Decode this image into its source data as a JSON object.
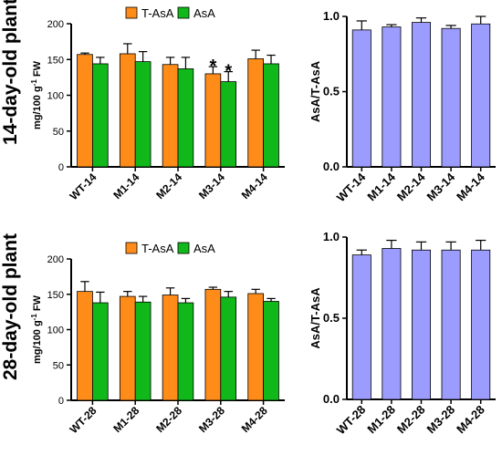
{
  "row_titles": [
    "14-day-old plant",
    "28-day-old plant"
  ],
  "colors": {
    "tasa": "#FF8C19",
    "asa": "#10B81A",
    "ratio": "#9C9CFF",
    "axis": "#000000"
  },
  "chart_data": [
    {
      "type": "bar",
      "ylabel": "mg/100 g-1 FW",
      "ylim": [
        0,
        200
      ],
      "yticks": [
        0,
        50,
        100,
        150,
        200
      ],
      "categories": [
        "WT-14",
        "M1-14",
        "M2-14",
        "M3-14",
        "M4-14"
      ],
      "legend_position": "top",
      "series": [
        {
          "name": "T-AsA",
          "color": "#FF8C19",
          "values": [
            157,
            158,
            143,
            130,
            151
          ],
          "errors": [
            2,
            14,
            10,
            10,
            12
          ]
        },
        {
          "name": "AsA",
          "color": "#10B81A",
          "values": [
            144,
            147,
            137,
            119,
            144
          ],
          "errors": [
            9,
            14,
            16,
            14,
            12
          ]
        }
      ],
      "annotations": [
        {
          "category": "M3-14",
          "series": "T-AsA",
          "text": "*"
        },
        {
          "category": "M3-14",
          "series": "AsA",
          "text": "*"
        }
      ]
    },
    {
      "type": "bar",
      "ylabel": "AsA/T-AsA",
      "ylim": [
        0,
        1.0
      ],
      "yticks": [
        "0.0",
        "0.5",
        "1.0"
      ],
      "categories": [
        "WT-14",
        "M1-14",
        "M2-14",
        "M3-14",
        "M4-14"
      ],
      "series": [
        {
          "color": "#9C9CFF",
          "values": [
            0.91,
            0.93,
            0.96,
            0.92,
            0.95
          ],
          "errors": [
            0.06,
            0.015,
            0.03,
            0.02,
            0.05
          ]
        }
      ]
    },
    {
      "type": "bar",
      "ylabel": "mg/100 g-1 FW",
      "ylim": [
        0,
        200
      ],
      "yticks": [
        0,
        50,
        100,
        150,
        200
      ],
      "categories": [
        "WT-28",
        "M1-28",
        "M2-28",
        "M3-28",
        "M4-28"
      ],
      "legend_position": "top",
      "series": [
        {
          "name": "T-AsA",
          "color": "#FF8C19",
          "values": [
            154,
            147,
            149,
            157,
            151
          ],
          "errors": [
            14,
            7,
            10,
            3,
            6
          ]
        },
        {
          "name": "AsA",
          "color": "#10B81A",
          "values": [
            138,
            139,
            138,
            146,
            140
          ],
          "errors": [
            15,
            8,
            6,
            8,
            4
          ]
        }
      ]
    },
    {
      "type": "bar",
      "ylabel": "AsA/T-AsA",
      "ylim": [
        0,
        1.0
      ],
      "yticks": [
        "0.0",
        "0.5",
        "1.0"
      ],
      "categories": [
        "WT-28",
        "M1-28",
        "M2-28",
        "M3-28",
        "M4-28"
      ],
      "series": [
        {
          "color": "#9C9CFF",
          "values": [
            0.89,
            0.93,
            0.92,
            0.92,
            0.92
          ],
          "errors": [
            0.03,
            0.05,
            0.05,
            0.05,
            0.06
          ]
        }
      ]
    }
  ]
}
